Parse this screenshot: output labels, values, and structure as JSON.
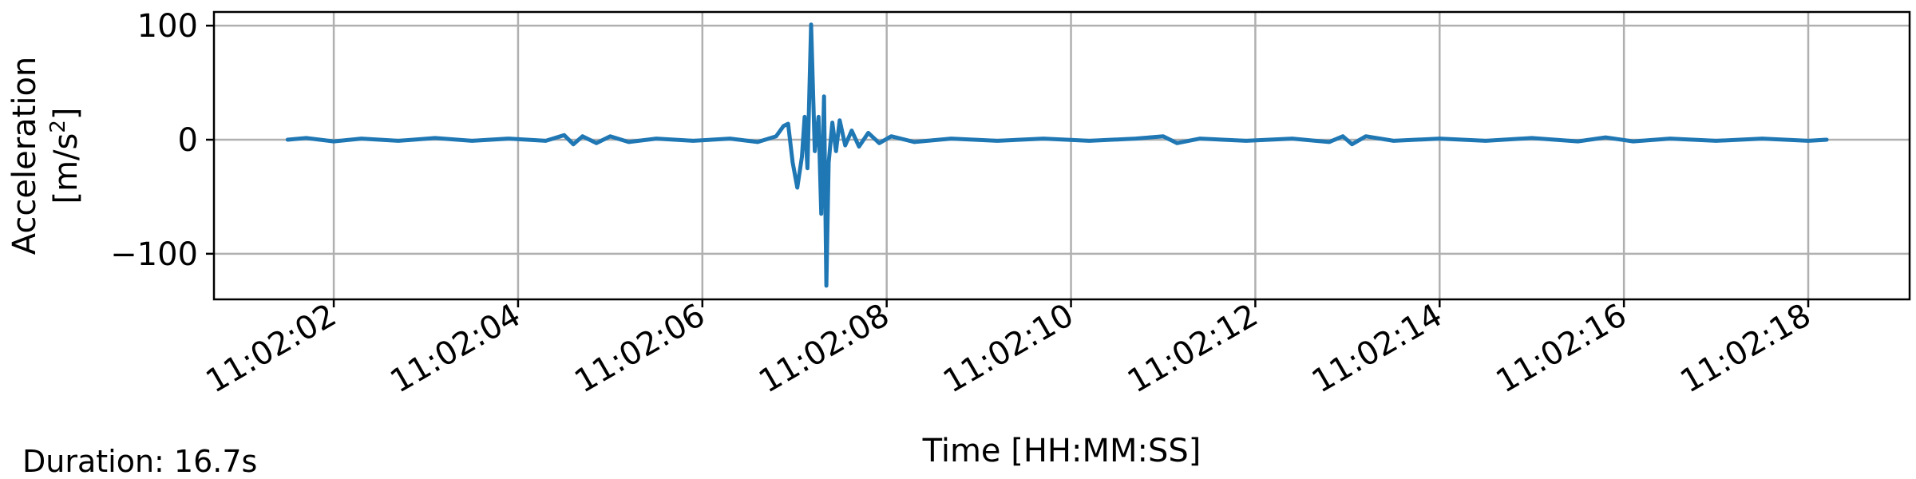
{
  "chart_data": {
    "type": "line",
    "xlabel": "Time [HH:MM:SS]",
    "ylabel_line1": "Acceleration",
    "ylabel_line2_prefix": "[m/s",
    "ylabel_line2_sup": "2",
    "ylabel_line2_suffix": "]",
    "x_ticks": [
      "11:02:02",
      "11:02:04",
      "11:02:06",
      "11:02:08",
      "11:02:10",
      "11:02:12",
      "11:02:14",
      "11:02:16",
      "11:02:18"
    ],
    "xlim": [
      "11:02:00.70",
      "11:02:19.10"
    ],
    "y_ticks": [
      "100",
      "0",
      "−100"
    ],
    "y_tick_values": [
      100,
      0,
      -100
    ],
    "ylim": [
      -140,
      112
    ],
    "grid": true,
    "line_color": "#1f77b4",
    "series": [
      {
        "x_start": "11:02:01.50",
        "x_end": "11:02:18.20",
        "points": [
          [
            "11:02:01.50",
            0
          ],
          [
            "11:02:01.70",
            1.5
          ],
          [
            "11:02:02.00",
            -1.5
          ],
          [
            "11:02:02.30",
            1
          ],
          [
            "11:02:02.70",
            -1
          ],
          [
            "11:02:03.10",
            1.5
          ],
          [
            "11:02:03.50",
            -1
          ],
          [
            "11:02:03.90",
            1
          ],
          [
            "11:02:04.30",
            -1
          ],
          [
            "11:02:04.50",
            4
          ],
          [
            "11:02:04.60",
            -4
          ],
          [
            "11:02:04.70",
            3
          ],
          [
            "11:02:04.85",
            -3
          ],
          [
            "11:02:05.00",
            3
          ],
          [
            "11:02:05.20",
            -2
          ],
          [
            "11:02:05.50",
            1
          ],
          [
            "11:02:05.90",
            -1
          ],
          [
            "11:02:06.30",
            1
          ],
          [
            "11:02:06.60",
            -2
          ],
          [
            "11:02:06.80",
            3
          ],
          [
            "11:02:06.88",
            12
          ],
          [
            "11:02:06.93",
            14
          ],
          [
            "11:02:06.98",
            -20
          ],
          [
            "11:02:07.03",
            -42
          ],
          [
            "11:02:07.08",
            -15
          ],
          [
            "11:02:07.11",
            20
          ],
          [
            "11:02:07.14",
            -25
          ],
          [
            "11:02:07.18",
            101
          ],
          [
            "11:02:07.22",
            -10
          ],
          [
            "11:02:07.26",
            20
          ],
          [
            "11:02:07.29",
            -65
          ],
          [
            "11:02:07.32",
            38
          ],
          [
            "11:02:07.345",
            -128
          ],
          [
            "11:02:07.37",
            -20
          ],
          [
            "11:02:07.41",
            15
          ],
          [
            "11:02:07.45",
            -10
          ],
          [
            "11:02:07.49",
            17
          ],
          [
            "11:02:07.55",
            -5
          ],
          [
            "11:02:07.62",
            8
          ],
          [
            "11:02:07.70",
            -6
          ],
          [
            "11:02:07.80",
            6
          ],
          [
            "11:02:07.92",
            -3
          ],
          [
            "11:02:08.05",
            3
          ],
          [
            "11:02:08.30",
            -2
          ],
          [
            "11:02:08.70",
            1
          ],
          [
            "11:02:09.20",
            -1
          ],
          [
            "11:02:09.70",
            1
          ],
          [
            "11:02:10.20",
            -1
          ],
          [
            "11:02:10.70",
            1
          ],
          [
            "11:02:11.00",
            3
          ],
          [
            "11:02:11.15",
            -3
          ],
          [
            "11:02:11.40",
            1
          ],
          [
            "11:02:11.90",
            -1
          ],
          [
            "11:02:12.40",
            1
          ],
          [
            "11:02:12.80",
            -2
          ],
          [
            "11:02:12.95",
            3
          ],
          [
            "11:02:13.05",
            -4
          ],
          [
            "11:02:13.20",
            3
          ],
          [
            "11:02:13.50",
            -1
          ],
          [
            "11:02:14.00",
            1
          ],
          [
            "11:02:14.50",
            -1
          ],
          [
            "11:02:15.00",
            1.5
          ],
          [
            "11:02:15.50",
            -1.5
          ],
          [
            "11:02:15.80",
            2
          ],
          [
            "11:02:16.10",
            -1.5
          ],
          [
            "11:02:16.50",
            1
          ],
          [
            "11:02:17.00",
            -1
          ],
          [
            "11:02:17.50",
            1
          ],
          [
            "11:02:18.00",
            -1
          ],
          [
            "11:02:18.20",
            0
          ]
        ]
      }
    ]
  },
  "footer": {
    "duration_text": "Duration: 16.7s"
  }
}
